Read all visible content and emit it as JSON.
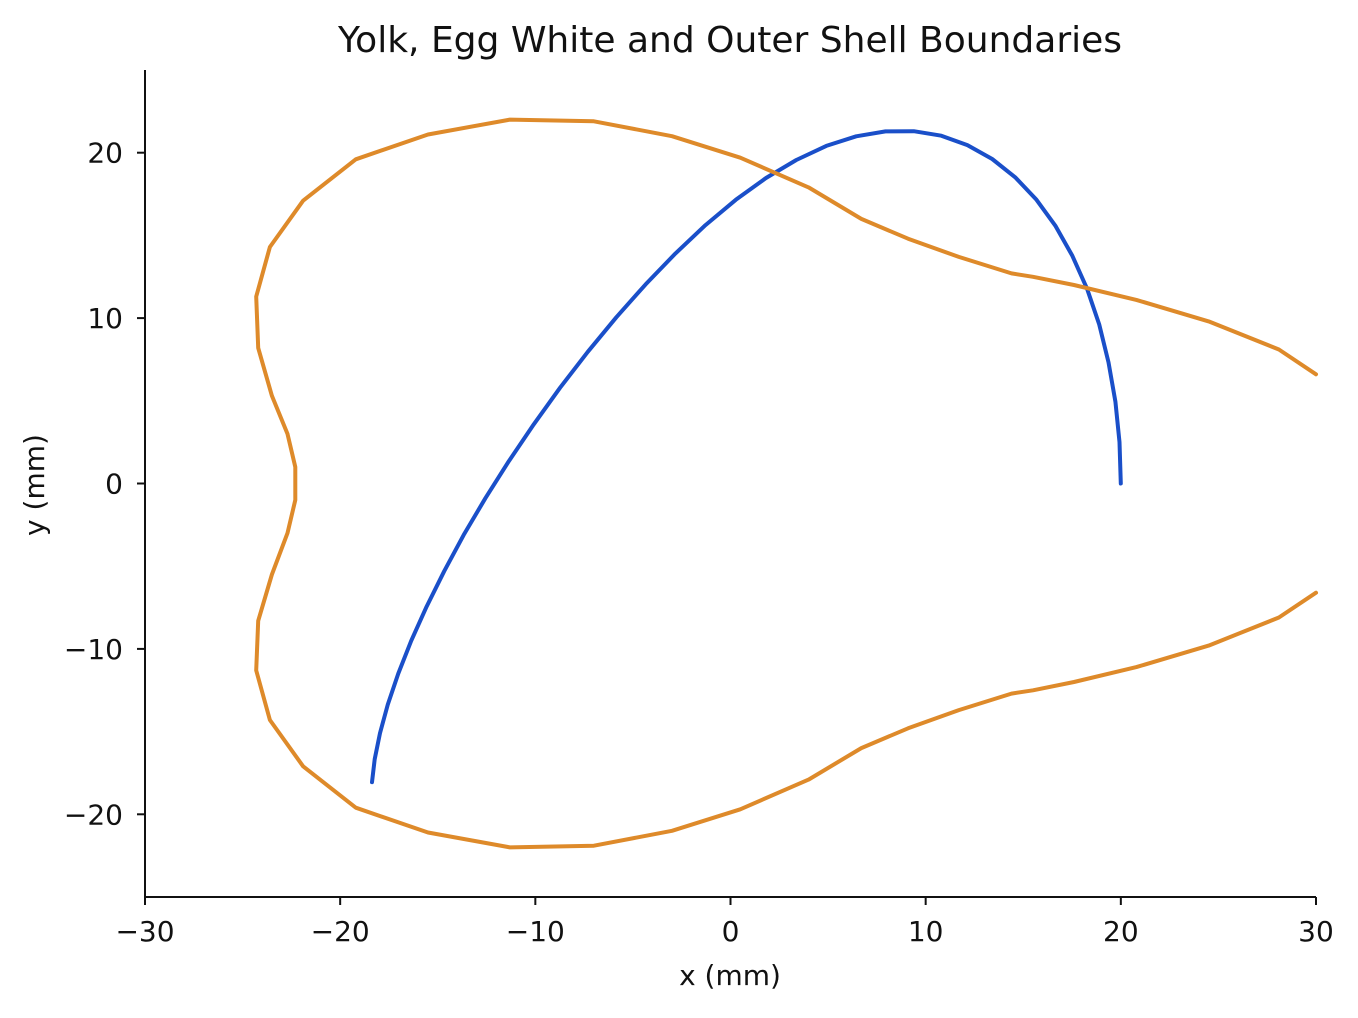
{
  "chart_data": {
    "type": "line",
    "title": "Yolk, Egg White and Outer Shell Boundaries",
    "xlabel": "x (mm)",
    "ylabel": "y (mm)",
    "xlim": [
      -30,
      30
    ],
    "ylim": [
      -25,
      25
    ],
    "xticks": [
      -30,
      -20,
      -10,
      0,
      10,
      20,
      30
    ],
    "xtick_labels": [
      "−30",
      "−20",
      "−10",
      "0",
      "10",
      "20",
      "30"
    ],
    "yticks": [
      -20,
      -10,
      0,
      10,
      20
    ],
    "ytick_labels": [
      "−20",
      "−10",
      "0",
      "10",
      "20"
    ],
    "grid": false,
    "legend": false,
    "colors": {
      "blue_series": "#1a4fc9",
      "orange_series": "#de8a2a"
    },
    "series": [
      {
        "color": "#1a4fc9",
        "x": [
          20.0,
          19.93,
          19.72,
          19.37,
          18.89,
          18.27,
          17.52,
          16.66,
          15.68,
          14.59,
          13.41,
          12.14,
          10.8,
          9.39,
          7.94,
          6.44,
          4.91,
          3.37,
          1.82,
          0.27,
          -1.28,
          -2.82,
          -4.35,
          -5.85,
          -7.31,
          -8.73,
          -10.08,
          -11.36,
          -12.56,
          -13.67,
          -14.67,
          -15.57,
          -16.36,
          -17.02,
          -17.56,
          -17.96,
          -18.23,
          -18.37,
          -18.37,
          -18.23,
          -17.96,
          -17.56,
          -17.02,
          -16.36,
          -15.57,
          -14.67,
          -13.67,
          -12.56,
          -11.36,
          -10.08,
          -8.73,
          -7.31,
          -5.85,
          -4.35,
          -2.82,
          -1.28,
          0.27,
          1.82,
          3.37,
          4.91,
          6.44,
          7.94,
          9.39,
          10.8,
          12.14,
          13.41,
          14.59,
          15.68,
          16.66,
          17.52,
          18.27,
          18.89,
          19.37,
          19.72,
          19.93,
          20.0
        ],
        "y": [
          0.0,
          2.5,
          4.95,
          7.33,
          9.62,
          11.77,
          13.76,
          15.56,
          17.15,
          18.51,
          19.62,
          20.46,
          21.03,
          21.3,
          21.29,
          20.99,
          20.41,
          19.56,
          18.47,
          17.15,
          15.62,
          13.91,
          12.04,
          10.05,
          7.96,
          5.79,
          3.58,
          1.35,
          -0.89,
          -3.11,
          -5.3,
          -7.44,
          -9.51,
          -11.49,
          -13.36,
          -15.09,
          -16.67,
          -18.06,
          -18.06,
          -16.67,
          -15.09,
          -13.36,
          -11.49,
          -9.51,
          -7.44,
          -5.3,
          -3.11,
          -0.89,
          1.35,
          3.58,
          5.79,
          7.96,
          10.05,
          12.04,
          13.91,
          15.62,
          17.15,
          18.47,
          19.56,
          20.41,
          20.99,
          21.29,
          21.3,
          21.03,
          20.46,
          19.62,
          18.51,
          17.15,
          15.56,
          13.76,
          11.77,
          9.62,
          7.33,
          4.95,
          2.5,
          0.0
        ]
      },
      {
        "color": "#de8a2a",
        "x": [
          30.0,
          28.1,
          24.5,
          20.8,
          17.6,
          15.5,
          14.4,
          11.7,
          9.1,
          6.7,
          4.0,
          0.5,
          -3.0,
          -7.0,
          -11.3,
          -15.5,
          -19.2,
          -21.9,
          -23.6,
          -24.3,
          -24.2,
          -23.5,
          -22.7,
          -22.3,
          -22.3,
          -22.7,
          -23.5,
          -24.2,
          -24.3,
          -23.6,
          -21.9,
          -19.2,
          -15.5,
          -11.3,
          -7.0,
          -3.0,
          0.5,
          4.0,
          6.7,
          9.1,
          11.7,
          14.4,
          15.5,
          17.6,
          20.8,
          24.5,
          28.1,
          30.0
        ],
        "y": [
          6.6,
          8.1,
          9.8,
          11.1,
          12.0,
          12.5,
          12.7,
          13.7,
          14.8,
          16.0,
          17.9,
          19.7,
          21.0,
          21.9,
          22.0,
          21.1,
          19.6,
          17.1,
          14.3,
          11.3,
          8.2,
          5.3,
          3.0,
          1.0,
          -1.0,
          -3.0,
          -5.5,
          -8.3,
          -11.3,
          -14.3,
          -17.1,
          -19.6,
          -21.1,
          -22.0,
          -21.9,
          -21.0,
          -19.7,
          -17.9,
          -16.0,
          -14.8,
          -13.7,
          -12.7,
          -12.5,
          -12.0,
          -11.1,
          -9.8,
          -8.1,
          -6.6
        ]
      }
    ]
  }
}
